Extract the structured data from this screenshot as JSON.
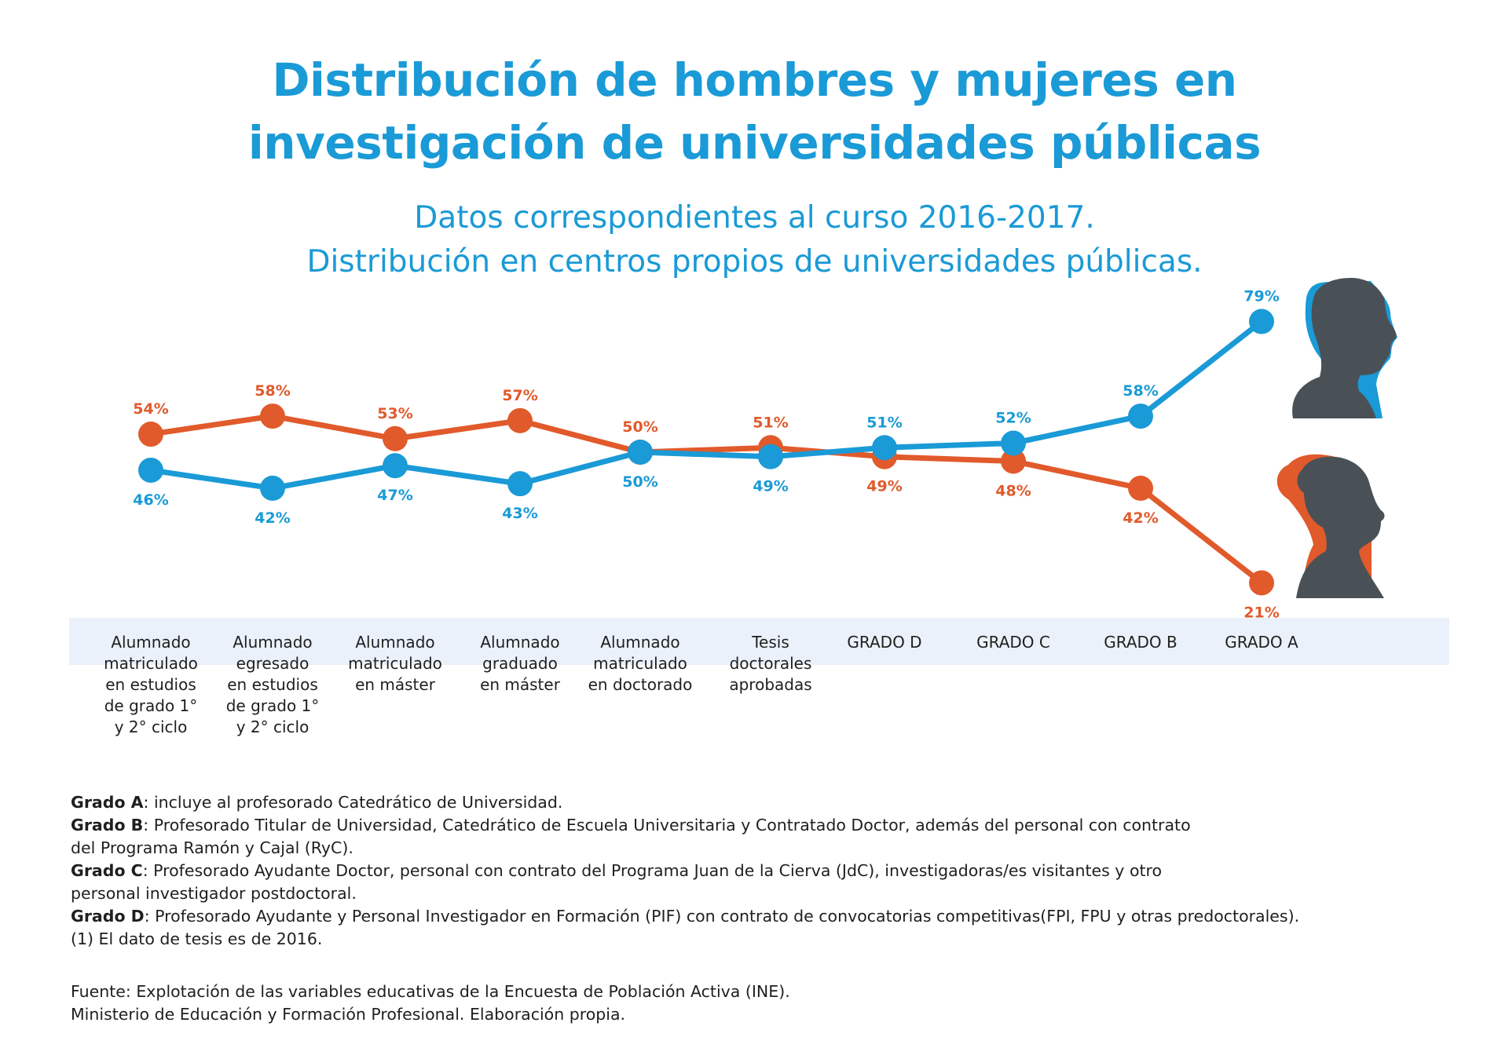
{
  "title": {
    "line1": "Distribución de hombres y mujeres en",
    "line2": "investigación de universidades públicas"
  },
  "subtitle": {
    "line1": "Datos correspondientes al curso 2016-2017.",
    "line2": "Distribución en centros propios de universidades públicas."
  },
  "colors": {
    "men": "#1a9ad6",
    "women": "#e15a2b",
    "silhouette": "#4a5156",
    "band": "#eaf1fa"
  },
  "icons": {
    "men": "man-head-silhouette-icon",
    "women": "woman-head-silhouette-icon"
  },
  "chart_data": {
    "type": "line",
    "categories": [
      "Alumnado\nmatriculado\nen estudios\nde grado 1°\ny 2° ciclo",
      "Alumnado\negresado\nen estudios\nde grado 1°\ny 2° ciclo",
      "Alumnado\nmatriculado\nen máster",
      "Alumnado\ngraduado\nen máster",
      "Alumnado\nmatriculado\nen doctorado",
      "Tesis\ndoctorales\naprobadas",
      "GRADO D",
      "GRADO C",
      "GRADO B",
      "GRADO A"
    ],
    "series": [
      {
        "key": "women",
        "values": [
          54,
          58,
          53,
          57,
          50,
          51,
          49,
          48,
          42,
          21
        ],
        "labels": [
          "54%",
          "58%",
          "53%",
          "57%",
          "50%",
          "51%",
          "49%",
          "48%",
          "42%",
          "21%"
        ]
      },
      {
        "key": "men",
        "values": [
          46,
          42,
          47,
          43,
          50,
          49,
          51,
          52,
          58,
          79
        ],
        "labels": [
          "46%",
          "42%",
          "47%",
          "43%",
          "50%",
          "49%",
          "51%",
          "52%",
          "58%",
          "79%"
        ]
      }
    ],
    "ylim": [
      0,
      100
    ],
    "grid": false,
    "unit": "%"
  },
  "notes": [
    {
      "term": "Grado A",
      "text": ": incluye al profesorado Catedrático de Universidad."
    },
    {
      "term": "Grado B",
      "text": ": Profesorado Titular de Universidad, Catedrático de Escuela Universitaria y Contratado Doctor, además del personal con contrato"
    },
    {
      "term": "",
      "text": "del Programa Ramón y Cajal (RyC)."
    },
    {
      "term": "Grado C",
      "text": ": Profesorado Ayudante Doctor, personal con contrato del Programa Juan de la Cierva (JdC), investigadoras/es visitantes y otro"
    },
    {
      "term": "",
      "text": "personal investigador postdoctoral."
    },
    {
      "term": "Grado D",
      "text": ": Profesorado Ayudante y Personal Investigador en Formación (PIF) con contrato de convocatorias competitivas(FPI, FPU y otras predoctorales)."
    },
    {
      "term": "",
      "text": "(1) El dato de tesis es de 2016."
    }
  ],
  "source": {
    "line1": "Fuente: Explotación de las variables educativas de la Encuesta de Población  Activa (INE).",
    "line2": "Ministerio de Educación y Formación Profesional. Elaboración propia."
  }
}
